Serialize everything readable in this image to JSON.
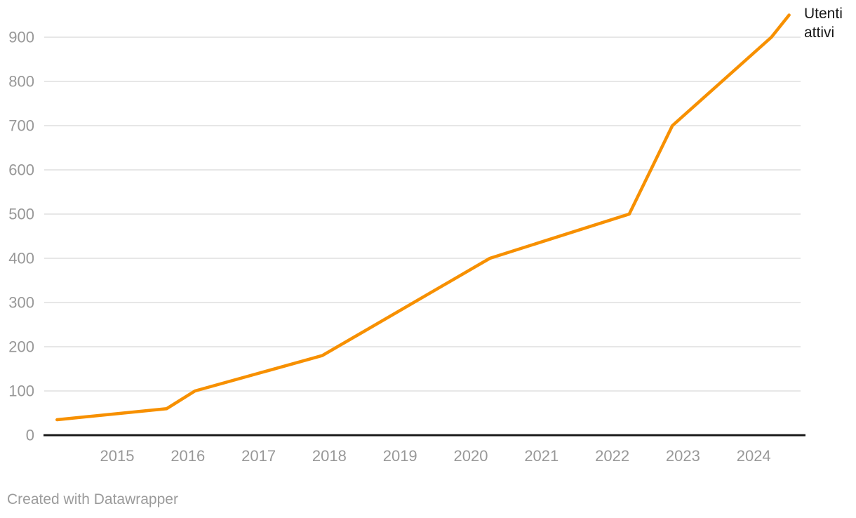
{
  "page": {
    "background": "#ffffff"
  },
  "chart_data": {
    "type": "line",
    "title": "",
    "xlabel": "",
    "ylabel": "",
    "grid": "horizontal gridlines on",
    "legend_position": "direct label at right end of line",
    "x_axis": {
      "tick_labels": [
        "2015",
        "2016",
        "2017",
        "2018",
        "2019",
        "2020",
        "2021",
        "2022",
        "2023",
        "2024"
      ],
      "range_decimal_years": [
        2014.15,
        2024.7
      ]
    },
    "y_axis": {
      "tick_labels": [
        "0",
        "100",
        "200",
        "300",
        "400",
        "500",
        "600",
        "700",
        "800",
        "900"
      ],
      "tick_values": [
        0,
        100,
        200,
        300,
        400,
        500,
        600,
        700,
        800,
        900
      ],
      "range": [
        0,
        965
      ]
    },
    "series": [
      {
        "name": "Utenti attivi",
        "color": "#F79000",
        "points": [
          {
            "x": 2014.15,
            "y": 35
          },
          {
            "x": 2015.7,
            "y": 60
          },
          {
            "x": 2016.1,
            "y": 100
          },
          {
            "x": 2017.9,
            "y": 180
          },
          {
            "x": 2020.27,
            "y": 400
          },
          {
            "x": 2022.24,
            "y": 500
          },
          {
            "x": 2022.85,
            "y": 700
          },
          {
            "x": 2024.25,
            "y": 900
          },
          {
            "x": 2024.5,
            "y": 950
          }
        ]
      }
    ]
  },
  "direct_label": {
    "text": "Utenti attivi"
  },
  "footer": {
    "attribution": "Created with Datawrapper"
  },
  "colors": {
    "line": "#F79000",
    "gridline": "#E7E7E7",
    "axis_line": "#1A1A1A",
    "tick_text": "#989898",
    "direct_label_text": "#161616",
    "attribution_text": "#9B9B9B"
  }
}
